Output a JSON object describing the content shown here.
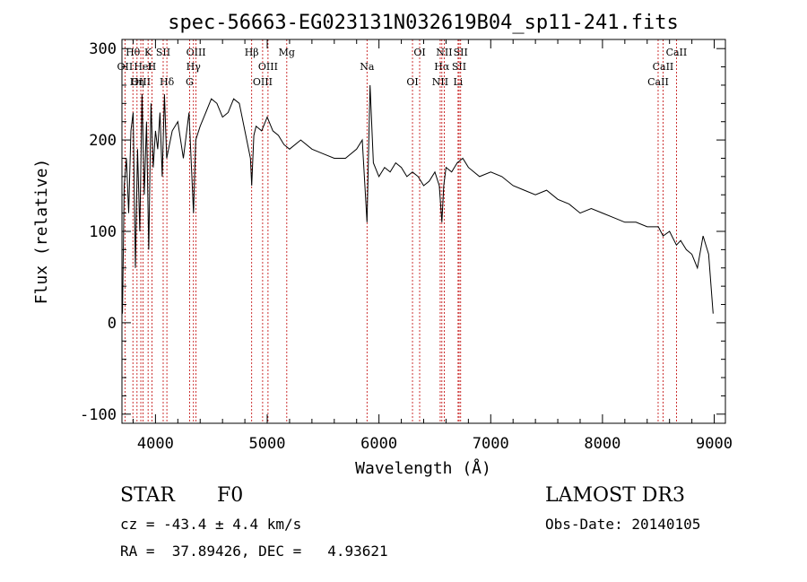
{
  "chart_data": {
    "type": "line",
    "title": "spec-56663-EG023131N032619B04_sp11-241.fits",
    "xlabel": "Wavelength (Å)",
    "ylabel": "Flux (relative)",
    "xlim": [
      3700,
      9100
    ],
    "ylim": [
      -110,
      310
    ],
    "xticks": [
      4000,
      5000,
      6000,
      7000,
      8000,
      9000
    ],
    "yticks": [
      -100,
      0,
      100,
      200,
      300
    ],
    "grid": false,
    "legend": "none",
    "series": [
      {
        "name": "flux",
        "x": [
          3705,
          3720,
          3740,
          3760,
          3780,
          3800,
          3820,
          3840,
          3860,
          3880,
          3900,
          3920,
          3940,
          3960,
          3980,
          4000,
          4020,
          4040,
          4060,
          4080,
          4100,
          4150,
          4200,
          4250,
          4300,
          4340,
          4360,
          4400,
          4450,
          4500,
          4550,
          4600,
          4650,
          4700,
          4750,
          4800,
          4850,
          4861,
          4880,
          4900,
          4950,
          5000,
          5050,
          5100,
          5150,
          5200,
          5300,
          5400,
          5500,
          5600,
          5700,
          5800,
          5850,
          5893,
          5920,
          5950,
          6000,
          6050,
          6100,
          6150,
          6200,
          6250,
          6300,
          6350,
          6400,
          6450,
          6500,
          6540,
          6563,
          6580,
          6600,
          6650,
          6700,
          6750,
          6800,
          6900,
          7000,
          7100,
          7200,
          7300,
          7400,
          7500,
          7600,
          7700,
          7800,
          7900,
          8000,
          8100,
          8200,
          8300,
          8400,
          8500,
          8542,
          8600,
          8662,
          8700,
          8750,
          8800,
          8850,
          8900,
          8950,
          8990
        ],
        "values": [
          10,
          150,
          180,
          120,
          210,
          230,
          60,
          190,
          100,
          250,
          140,
          220,
          80,
          240,
          170,
          210,
          190,
          230,
          160,
          250,
          180,
          210,
          220,
          180,
          230,
          120,
          200,
          215,
          230,
          245,
          240,
          225,
          230,
          245,
          240,
          210,
          180,
          150,
          205,
          215,
          210,
          225,
          210,
          205,
          195,
          190,
          200,
          190,
          185,
          180,
          180,
          190,
          200,
          110,
          260,
          175,
          160,
          170,
          165,
          175,
          170,
          160,
          165,
          160,
          150,
          155,
          165,
          150,
          110,
          150,
          170,
          165,
          175,
          180,
          170,
          160,
          165,
          160,
          150,
          145,
          140,
          145,
          135,
          130,
          120,
          125,
          120,
          115,
          110,
          110,
          105,
          105,
          95,
          100,
          85,
          90,
          80,
          75,
          60,
          95,
          75,
          10
        ]
      }
    ],
    "line_ids": [
      {
        "label": "Hθ",
        "x": 3798
      },
      {
        "label": "OII",
        "x": 3727
      },
      {
        "label": "OIII",
        "x": 3869
      },
      {
        "label": "K",
        "x": 3934
      },
      {
        "label": "HeI",
        "x": 3889
      },
      {
        "label": "Hη",
        "x": 3835
      },
      {
        "label": "SII",
        "x": 4069
      },
      {
        "label": "H",
        "x": 3968
      },
      {
        "label": "Hδ",
        "x": 4102
      },
      {
        "label": "OIII",
        "x": 4363
      },
      {
        "label": "Hγ",
        "x": 4340
      },
      {
        "label": "G",
        "x": 4305
      },
      {
        "label": "Hβ",
        "x": 4861
      },
      {
        "label": "OIII",
        "x": 5007
      },
      {
        "label": "OIII",
        "x": 4959
      },
      {
        "label": "Mg",
        "x": 5175
      },
      {
        "label": "Na",
        "x": 5893
      },
      {
        "label": "OI",
        "x": 6300
      },
      {
        "label": "OI",
        "x": 6364
      },
      {
        "label": "Hα",
        "x": 6563
      },
      {
        "label": "NII",
        "x": 6548
      },
      {
        "label": "NII",
        "x": 6584
      },
      {
        "label": "SII",
        "x": 6717
      },
      {
        "label": "Li",
        "x": 6708
      },
      {
        "label": "SII",
        "x": 6731
      },
      {
        "label": "CaII",
        "x": 8542
      },
      {
        "label": "CaII",
        "x": 8498
      },
      {
        "label": "CaII",
        "x": 8662
      }
    ]
  },
  "info": {
    "class": "STAR",
    "subclass": "F0",
    "survey": "LAMOST DR3",
    "cz": "cz = -43.4 ± 4.4 km/s",
    "obs_date": "Obs-Date: 20140105",
    "radec": "RA =  37.89426, DEC =   4.93621"
  }
}
